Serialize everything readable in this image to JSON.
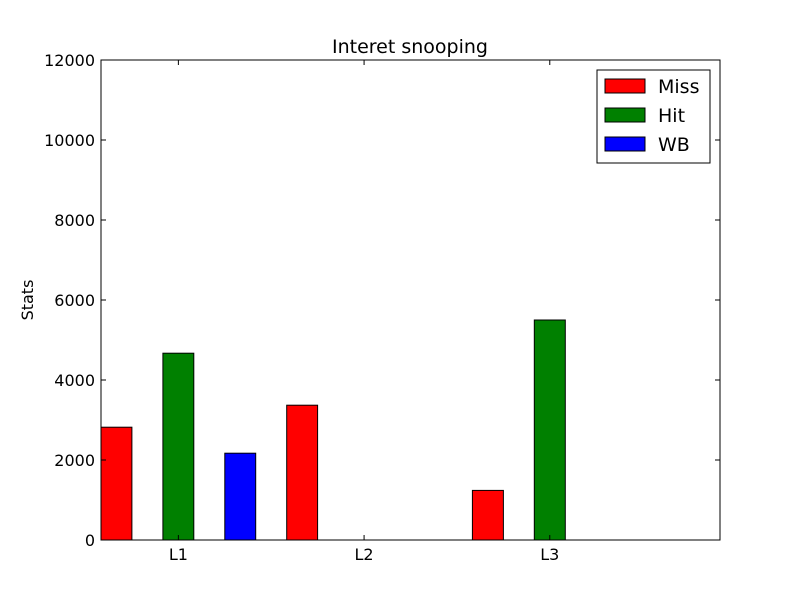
{
  "chart_data": {
    "type": "bar",
    "title": "Interet snooping",
    "xlabel": "",
    "ylabel": "Stats",
    "categories": [
      "L1",
      "L2",
      "L3"
    ],
    "series": [
      {
        "name": "Miss",
        "color": "#ff0000",
        "values": [
          2820,
          3370,
          1240
        ]
      },
      {
        "name": "Hit",
        "color": "#008000",
        "values": [
          4670,
          0,
          5500
        ]
      },
      {
        "name": "WB",
        "color": "#0000ff",
        "values": [
          2170,
          0,
          0
        ]
      }
    ],
    "ylim": [
      0,
      12000
    ],
    "yticks": [
      0,
      2000,
      4000,
      6000,
      8000,
      10000,
      12000
    ],
    "grid": false,
    "legend_position": "top-right"
  }
}
